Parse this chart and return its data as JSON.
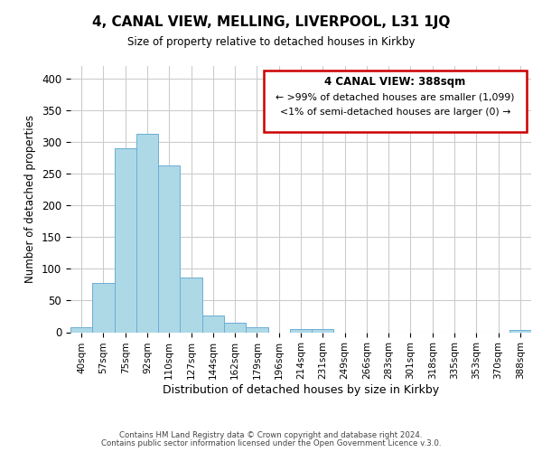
{
  "title": "4, CANAL VIEW, MELLING, LIVERPOOL, L31 1JQ",
  "subtitle": "Size of property relative to detached houses in Kirkby",
  "xlabel": "Distribution of detached houses by size in Kirkby",
  "ylabel": "Number of detached properties",
  "bar_color": "#add8e6",
  "bar_edge_color": "#6baed6",
  "background_color": "#ffffff",
  "grid_color": "#cccccc",
  "ylim": [
    0,
    420
  ],
  "yticks": [
    0,
    50,
    100,
    150,
    200,
    250,
    300,
    350,
    400
  ],
  "bin_labels": [
    "40sqm",
    "57sqm",
    "75sqm",
    "92sqm",
    "110sqm",
    "127sqm",
    "144sqm",
    "162sqm",
    "179sqm",
    "196sqm",
    "214sqm",
    "231sqm",
    "249sqm",
    "266sqm",
    "283sqm",
    "301sqm",
    "318sqm",
    "335sqm",
    "353sqm",
    "370sqm",
    "388sqm"
  ],
  "bar_heights": [
    8,
    77,
    290,
    313,
    263,
    86,
    26,
    15,
    8,
    0,
    5,
    5,
    0,
    0,
    0,
    0,
    0,
    0,
    0,
    0,
    3
  ],
  "legend_title": "4 CANAL VIEW: 388sqm",
  "legend_line1": "← >99% of detached houses are smaller (1,099)",
  "legend_line2": "<1% of semi-detached houses are larger (0) →",
  "legend_box_color": "#cc0000",
  "footer1": "Contains HM Land Registry data © Crown copyright and database right 2024.",
  "footer2": "Contains public sector information licensed under the Open Government Licence v.3.0."
}
